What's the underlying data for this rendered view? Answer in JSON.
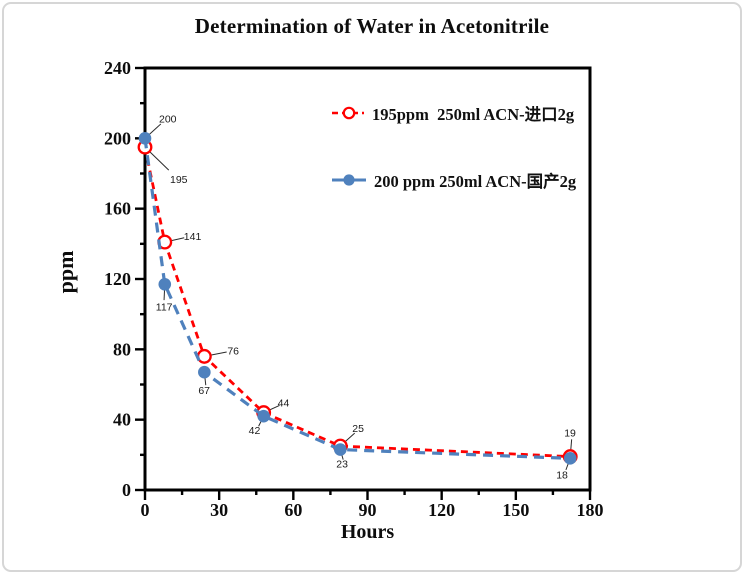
{
  "card": {
    "background": "#ffffff",
    "border_color": "#d6d6d6"
  },
  "chart_data": {
    "type": "line",
    "title": "Determination of Water in Acetonitrile",
    "xlabel": "Hours",
    "ylabel": "ppm",
    "xlim": [
      0,
      180
    ],
    "ylim": [
      0,
      240
    ],
    "x_major_ticks": [
      0,
      30,
      60,
      90,
      120,
      150,
      180
    ],
    "x_minor_step": 15,
    "y_major_ticks": [
      0,
      40,
      80,
      120,
      160,
      200,
      240
    ],
    "y_minor_step": 20,
    "grid": false,
    "frame": true,
    "axis_color": "#000000",
    "leader_line_color": "#2a2a2a",
    "legend_position": "inside-upper-center",
    "series": [
      {
        "name": "195ppm  250ml ACN-进口2g",
        "color": "#ff0000",
        "line_style": "dashed",
        "dash": "7,5",
        "line_width": 2.8,
        "marker": "open-circle",
        "x": [
          0,
          8,
          24,
          48,
          79,
          172
        ],
        "values": [
          195,
          141,
          76,
          44,
          25,
          19
        ],
        "label_offsets": [
          [
            25,
            36
          ],
          [
            19,
            -2
          ],
          [
            23,
            -2
          ],
          [
            14,
            -6
          ],
          [
            12,
            -14
          ],
          [
            -6,
            -20
          ]
        ]
      },
      {
        "name": "200 ppm 250ml ACN-国产2g",
        "color": "#4f81bd",
        "line_style": "dashed",
        "dash": "10,7",
        "line_width": 3.2,
        "marker": "filled-circle",
        "x": [
          0,
          8,
          24,
          48,
          79,
          172
        ],
        "values": [
          200,
          117,
          67,
          42,
          23,
          18
        ],
        "label_offsets": [
          [
            14,
            -16
          ],
          [
            -9,
            26
          ],
          [
            -6,
            22
          ],
          [
            -15,
            18
          ],
          [
            -4,
            18
          ],
          [
            -14,
            20
          ]
        ]
      }
    ]
  }
}
